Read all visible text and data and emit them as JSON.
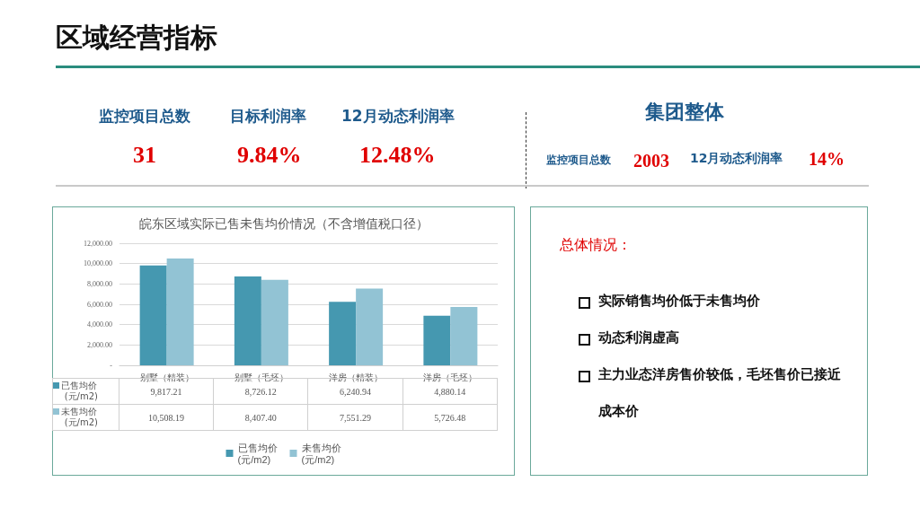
{
  "chart_data": [
    {
      "type": "other",
      "title": "区域经营指标",
      "annotations": [
        "监控项目总数",
        "31",
        "目标利润率",
        "9.84%",
        "12月动态利润率",
        "12.48%",
        "集团整体",
        "监控项目总数",
        "2003",
        "12月动态利润率",
        "14%"
      ]
    },
    {
      "type": "bar",
      "title": "皖东区域实际已售未售均价情况（不含增值税口径）",
      "categories": [
        "别墅（精装）",
        "别墅（毛坯）",
        "洋房（精装）",
        "洋房（毛坯）"
      ],
      "series": [
        {
          "name": "已售均价 (元/m2)",
          "color": "#4598b0",
          "values": [
            9817.21,
            8726.12,
            6240.94,
            4880.14
          ],
          "value_labels": [
            "9,817.21",
            "8,726.12",
            "6,240.94",
            "4,880.14"
          ]
        },
        {
          "name": "未售均价 (元/m2)",
          "color": "#92c3d4",
          "values": [
            10508.19,
            8407.4,
            7551.29,
            5726.48
          ],
          "value_labels": [
            "10,508.19",
            "8,407.40",
            "7,551.29",
            "5,726.48"
          ]
        }
      ],
      "ylim": [
        0,
        12000
      ],
      "yticks": [
        {
          "value": 0,
          "label": "-"
        },
        {
          "value": 2000,
          "label": "2,000.00"
        },
        {
          "value": 4000,
          "label": "4,000.00"
        },
        {
          "value": 6000,
          "label": "6,000.00"
        },
        {
          "value": 8000,
          "label": "8,000.00"
        },
        {
          "value": 10000,
          "label": "10,000.00"
        },
        {
          "value": 12000,
          "label": "12,000.00"
        }
      ],
      "grid": "y",
      "legend": "bottom"
    },
    {
      "type": "other",
      "title": "总体情况：",
      "annotations": [
        "实际销售均价低于未售均价",
        "动态利润虚高",
        "主力业态洋房售价较低，毛坯售价已接近成本价"
      ]
    }
  ]
}
